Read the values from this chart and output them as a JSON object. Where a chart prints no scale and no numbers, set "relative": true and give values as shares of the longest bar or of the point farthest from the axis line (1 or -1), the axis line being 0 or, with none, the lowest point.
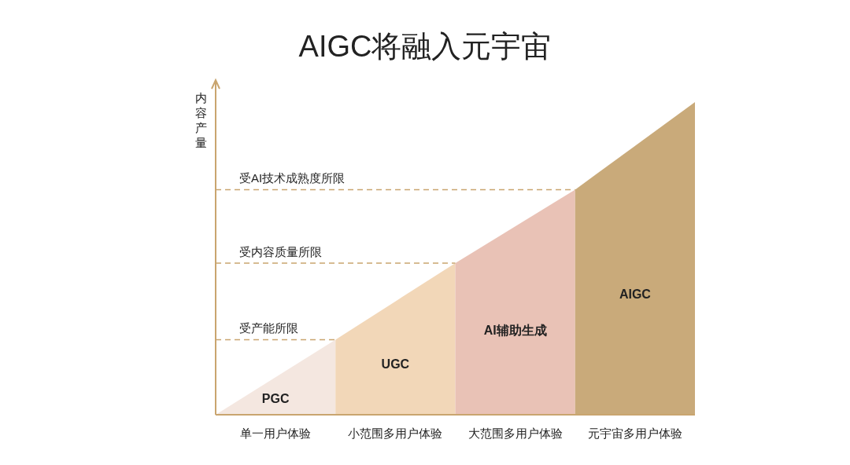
{
  "chart_data": {
    "type": "area",
    "title": "AIGC将融入元宇宙",
    "ylabel": "内容产量",
    "relative": true,
    "categories": [
      null,
      "单一用户体验",
      null,
      "小范围多用户体验",
      null,
      "大范围多用户体验",
      null,
      "元宇宙多用户体验",
      null
    ],
    "series": [
      {
        "name": "PGC",
        "color": "#f4e7e0",
        "values": [
          0,
          0.12,
          0.24,
          null,
          null,
          null,
          null,
          null,
          null
        ]
      },
      {
        "name": "UGC",
        "color": "#f2d7b8",
        "values": [
          null,
          null,
          0.24,
          0.3625,
          0.485,
          null,
          null,
          null,
          null
        ]
      },
      {
        "name": "AI辅助生成",
        "color": "#e9c2b6",
        "values": [
          null,
          null,
          null,
          null,
          0.485,
          0.6025,
          0.72,
          null,
          null
        ]
      },
      {
        "name": "AIGC",
        "color": "#c9aa7a",
        "values": [
          null,
          null,
          null,
          null,
          null,
          null,
          0.72,
          0.86,
          1
        ]
      }
    ],
    "ref_lines": [
      {
        "axis": "y",
        "value": 0.24,
        "label": "受产能所限",
        "color": "#c9a56f",
        "line_style": "dashed"
      },
      {
        "axis": "y",
        "value": 0.485,
        "label": "受内容质量所限",
        "color": "#c9a56f",
        "line_style": "dashed"
      },
      {
        "axis": "y",
        "value": 0.72,
        "label": "受AI技术成熟度所限",
        "color": "#c9a56f",
        "line_style": "dashed"
      }
    ]
  }
}
